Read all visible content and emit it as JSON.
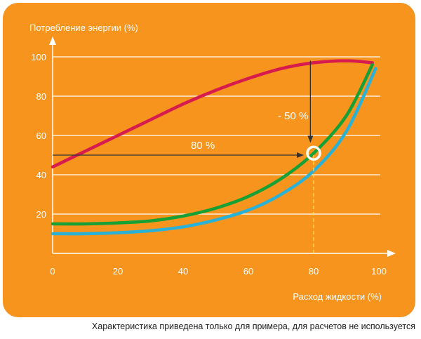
{
  "chart_data": {
    "type": "line",
    "ylabel": "Потребление энергии (%)",
    "xlabel": "Расход жидкости (%)",
    "xlim": [
      0,
      100
    ],
    "ylim": [
      0,
      100
    ],
    "xticks": [
      0,
      20,
      40,
      60,
      80,
      100
    ],
    "yticks": [
      20,
      40,
      60,
      80,
      100
    ],
    "grid": "horizontal",
    "series": [
      {
        "color": "#d81b4f",
        "points": [
          [
            0,
            44
          ],
          [
            10,
            52
          ],
          [
            20,
            60
          ],
          [
            30,
            68
          ],
          [
            40,
            76
          ],
          [
            50,
            83
          ],
          [
            60,
            89
          ],
          [
            70,
            94
          ],
          [
            80,
            97
          ],
          [
            90,
            98
          ],
          [
            98,
            97
          ]
        ]
      },
      {
        "color": "#16a035",
        "points": [
          [
            0,
            15
          ],
          [
            10,
            15
          ],
          [
            20,
            15.5
          ],
          [
            30,
            16.5
          ],
          [
            40,
            19
          ],
          [
            50,
            23
          ],
          [
            60,
            29
          ],
          [
            70,
            38
          ],
          [
            80,
            51
          ],
          [
            90,
            70
          ],
          [
            98,
            96
          ]
        ]
      },
      {
        "color": "#2ab1d6",
        "points": [
          [
            0,
            10
          ],
          [
            10,
            10
          ],
          [
            20,
            10.5
          ],
          [
            30,
            11.5
          ],
          [
            40,
            13.5
          ],
          [
            50,
            17
          ],
          [
            60,
            22
          ],
          [
            70,
            30
          ],
          [
            80,
            42
          ],
          [
            90,
            62
          ],
          [
            99,
            94
          ]
        ]
      }
    ],
    "annotations": {
      "horizontal_arrow": {
        "label": "80 %",
        "from": [
          0,
          50
        ],
        "to": [
          80,
          50
        ]
      },
      "vertical_arrow": {
        "label": "- 50 %",
        "from": [
          79,
          98
        ],
        "to": [
          79,
          52
        ]
      },
      "marker": {
        "x": 80,
        "y": 51
      },
      "dashed_drop": {
        "x": 80,
        "from_y": 50,
        "to_y": 0
      }
    }
  },
  "caption": "Характеристика приведена только для примера, для расчетов не используется"
}
